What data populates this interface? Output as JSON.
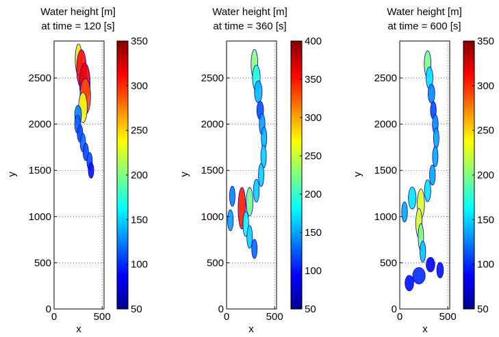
{
  "chart_data": [
    {
      "type": "heatmap",
      "title_line1": "Water height [m]",
      "title_line2": "at time = 120 [s]",
      "xlabel": "x",
      "ylabel": "y",
      "xlim": [
        0,
        520
      ],
      "ylim": [
        0,
        2900
      ],
      "xticks": [
        0,
        500
      ],
      "yticks": [
        0,
        500,
        1000,
        1500,
        2000,
        2500
      ],
      "grid": true,
      "colorbar": {
        "range": [
          50,
          350
        ],
        "ticks": [
          50,
          100,
          150,
          200,
          250,
          300,
          350
        ]
      },
      "colormap": "jet",
      "flow": [
        {
          "x": 255,
          "y": 2700,
          "w": 70,
          "h": 250
        },
        {
          "x": 285,
          "y": 2600,
          "w": 100,
          "h": 320
        },
        {
          "x": 320,
          "y": 2450,
          "w": 110,
          "h": 330
        },
        {
          "x": 325,
          "y": 2300,
          "w": 110,
          "h": 300
        },
        {
          "x": 300,
          "y": 2180,
          "w": 90,
          "h": 240
        },
        {
          "x": 250,
          "y": 2100,
          "w": 70,
          "h": 120
        },
        {
          "x": 245,
          "y": 2000,
          "w": 60,
          "h": 110
        },
        {
          "x": 270,
          "y": 1900,
          "w": 55,
          "h": 100
        },
        {
          "x": 300,
          "y": 1800,
          "w": 55,
          "h": 110
        },
        {
          "x": 330,
          "y": 1700,
          "w": 50,
          "h": 100
        },
        {
          "x": 370,
          "y": 1600,
          "w": 45,
          "h": 100
        },
        {
          "x": 385,
          "y": 1500,
          "w": 35,
          "h": 80
        }
      ]
    },
    {
      "type": "heatmap",
      "title_line1": "Water height [m]",
      "title_line2": "at time = 360 [s]",
      "xlabel": "x",
      "ylabel": "y",
      "xlim": [
        0,
        520
      ],
      "ylim": [
        0,
        2900
      ],
      "xticks": [
        0,
        500
      ],
      "yticks": [
        0,
        500,
        1000,
        1500,
        2000,
        2500
      ],
      "grid": true,
      "colorbar": {
        "range": [
          50,
          400
        ],
        "ticks": [
          50,
          100,
          150,
          200,
          250,
          300,
          350,
          400
        ]
      },
      "colormap": "jet",
      "flow": [
        {
          "x": 290,
          "y": 2650,
          "w": 70,
          "h": 230
        },
        {
          "x": 310,
          "y": 2500,
          "w": 80,
          "h": 190
        },
        {
          "x": 330,
          "y": 2350,
          "w": 80,
          "h": 150
        },
        {
          "x": 350,
          "y": 2150,
          "w": 70,
          "h": 110
        },
        {
          "x": 370,
          "y": 2000,
          "w": 60,
          "h": 140
        },
        {
          "x": 390,
          "y": 1850,
          "w": 55,
          "h": 150
        },
        {
          "x": 385,
          "y": 1650,
          "w": 55,
          "h": 160
        },
        {
          "x": 360,
          "y": 1450,
          "w": 55,
          "h": 160
        },
        {
          "x": 310,
          "y": 1280,
          "w": 60,
          "h": 160
        },
        {
          "x": 240,
          "y": 1160,
          "w": 70,
          "h": 220
        },
        {
          "x": 160,
          "y": 1090,
          "w": 80,
          "h": 360
        },
        {
          "x": 60,
          "y": 1220,
          "w": 55,
          "h": 130
        },
        {
          "x": 40,
          "y": 960,
          "w": 60,
          "h": 140
        },
        {
          "x": 200,
          "y": 920,
          "w": 60,
          "h": 180
        },
        {
          "x": 240,
          "y": 780,
          "w": 45,
          "h": 160
        },
        {
          "x": 290,
          "y": 650,
          "w": 40,
          "h": 120
        }
      ]
    },
    {
      "type": "heatmap",
      "title_line1": "Water height [m]",
      "title_line2": "at time = 600 [s]",
      "xlabel": "x",
      "ylabel": "y",
      "xlim": [
        0,
        520
      ],
      "ylim": [
        0,
        2900
      ],
      "xticks": [
        0,
        500
      ],
      "yticks": [
        0,
        500,
        1000,
        1500,
        2000,
        2500
      ],
      "grid": true,
      "colorbar": {
        "range": [
          50,
          350
        ],
        "ticks": [
          50,
          100,
          150,
          200,
          250,
          300,
          350
        ]
      },
      "colormap": "jet",
      "flow": [
        {
          "x": 290,
          "y": 2650,
          "w": 70,
          "h": 200
        },
        {
          "x": 310,
          "y": 2500,
          "w": 70,
          "h": 150
        },
        {
          "x": 330,
          "y": 2330,
          "w": 70,
          "h": 120
        },
        {
          "x": 350,
          "y": 2150,
          "w": 60,
          "h": 100
        },
        {
          "x": 370,
          "y": 2000,
          "w": 60,
          "h": 120
        },
        {
          "x": 380,
          "y": 1850,
          "w": 55,
          "h": 130
        },
        {
          "x": 370,
          "y": 1650,
          "w": 55,
          "h": 130
        },
        {
          "x": 340,
          "y": 1450,
          "w": 60,
          "h": 130
        },
        {
          "x": 290,
          "y": 1280,
          "w": 65,
          "h": 150
        },
        {
          "x": 220,
          "y": 1140,
          "w": 75,
          "h": 230
        },
        {
          "x": 130,
          "y": 1200,
          "w": 80,
          "h": 150
        },
        {
          "x": 50,
          "y": 1050,
          "w": 60,
          "h": 130
        },
        {
          "x": 200,
          "y": 930,
          "w": 65,
          "h": 230
        },
        {
          "x": 220,
          "y": 780,
          "w": 55,
          "h": 200
        },
        {
          "x": 240,
          "y": 620,
          "w": 60,
          "h": 140
        },
        {
          "x": 320,
          "y": 480,
          "w": 90,
          "h": 70
        },
        {
          "x": 200,
          "y": 360,
          "w": 130,
          "h": 90
        },
        {
          "x": 420,
          "y": 420,
          "w": 70,
          "h": 80
        },
        {
          "x": 100,
          "y": 280,
          "w": 90,
          "h": 80
        }
      ]
    }
  ]
}
